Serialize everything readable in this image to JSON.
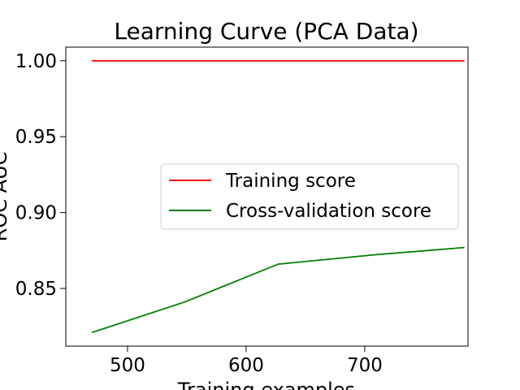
{
  "chart_data": {
    "type": "line",
    "title": "Learning Curve (PCA Data)",
    "xlabel": "Training examples",
    "ylabel": "ROC AUC",
    "xlim": [
      448,
      787
    ],
    "ylim": [
      0.812,
      1.009
    ],
    "x_ticks": [
      500,
      600,
      700
    ],
    "y_ticks": [
      0.85,
      0.9,
      0.95,
      1.0
    ],
    "x_tick_labels": [
      "500",
      "600",
      "700"
    ],
    "y_tick_labels": [
      "0.85",
      "0.90",
      "0.95",
      "1.00"
    ],
    "grid": false,
    "legend_position": "center-right",
    "series": [
      {
        "name": "Training score",
        "color": "#ff0000",
        "x": [
          470,
          548,
          627,
          706,
          784
        ],
        "y": [
          1.0,
          1.0,
          1.0,
          1.0,
          1.0
        ]
      },
      {
        "name": "Cross-validation score",
        "color": "#008000",
        "x": [
          470,
          548,
          627,
          706,
          784
        ],
        "y": [
          0.821,
          0.841,
          0.866,
          0.872,
          0.877
        ]
      }
    ]
  }
}
